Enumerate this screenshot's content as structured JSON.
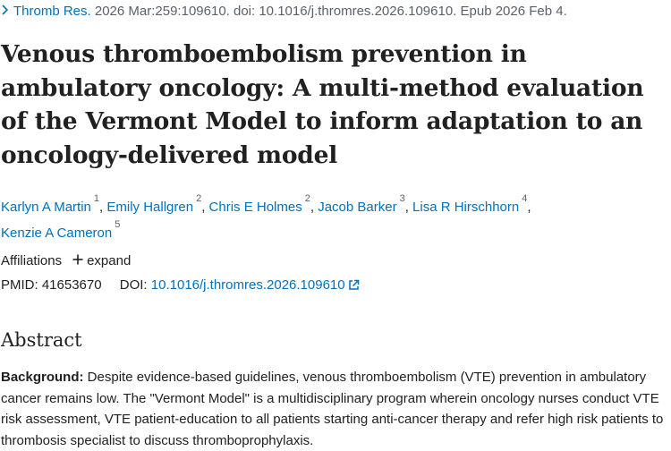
{
  "citation": {
    "chevron_icon": "chevron-right-icon",
    "journal": "Thromb Res.",
    "details": " 2026 Mar:259:109610. doi: 10.1016/j.thromres.2026.109610. Epub 2026 Feb 4."
  },
  "article": {
    "title": "Venous thromboembolism prevention in ambulatory oncology: A multi-method evaluation of the Vermont Model to inform adaptation to an oncology-delivered model"
  },
  "authors": [
    {
      "name": "Karlyn A Martin",
      "ref": "1"
    },
    {
      "name": "Emily Hallgren",
      "ref": "2"
    },
    {
      "name": "Chris E Holmes",
      "ref": "2"
    },
    {
      "name": "Jacob Barker",
      "ref": "3"
    },
    {
      "name": "Lisa R Hirschhorn",
      "ref": "4"
    },
    {
      "name": "Kenzie A Cameron",
      "ref": "5"
    }
  ],
  "affiliations": {
    "label": "Affiliations",
    "expand_icon": "plus-icon",
    "expand_label": "expand"
  },
  "identifiers": {
    "pmid_label": "PMID:",
    "pmid": "41653670",
    "doi_label": "DOI:",
    "doi": "10.1016/j.thromres.2026.109610",
    "doi_icon": "external-link-icon"
  },
  "abstract": {
    "heading": "Abstract",
    "background_label": "Background:",
    "background_text": " Despite evidence-based guidelines, venous thromboembolism (VTE) prevention in ambulatory cancer remains low. The \"Vermont Model\" is a multidisciplinary program wherein oncology nurses conduct VTE risk assessment, VTE patient-education to all patients starting anti-cancer therapy and refer high risk patients to thrombosis specialist to discuss thromboprophylaxis."
  },
  "colors": {
    "link": "#0071bc",
    "text": "#212121",
    "muted": "#5b616b"
  }
}
